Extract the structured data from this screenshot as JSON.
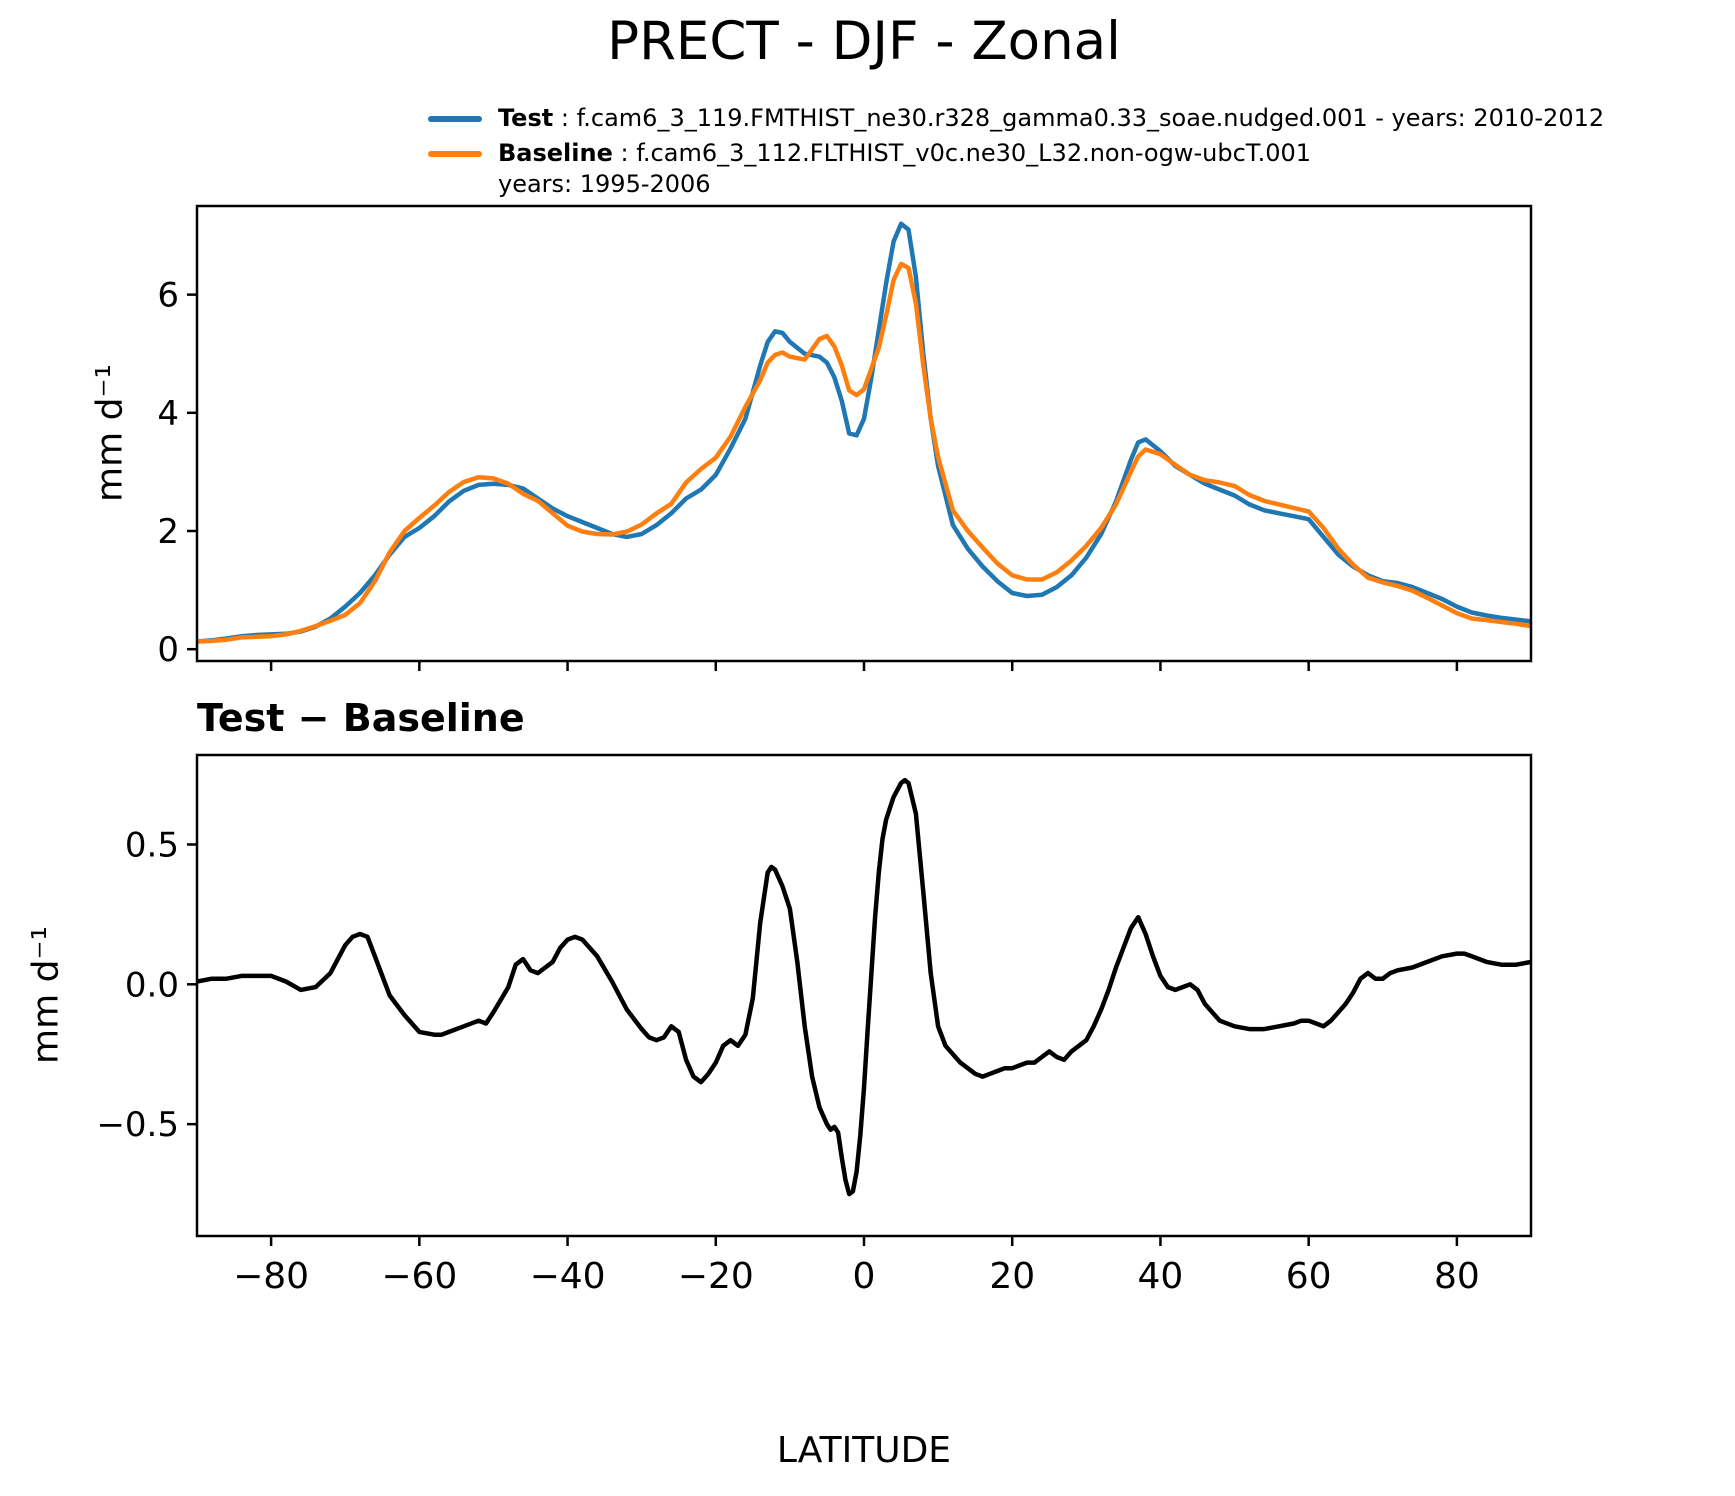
{
  "legend": {
    "items": [
      {
        "label": "Test",
        "text": " : f.cam6_3_119.FMTHIST_ne30.r328_gamma0.33_soae.nudged.001 - years: 2010-2012",
        "color": "#1f77b4"
      },
      {
        "label": "Baseline",
        "text": " : f.cam6_3_112.FLTHIST_v0c.ne30_L32.non-ogw-ubcT.001",
        "text2": "years: 1995-2006",
        "color": "#ff7f0e"
      }
    ]
  },
  "chart_data": [
    {
      "type": "line",
      "title": "PRECT - DJF - Zonal",
      "xlabel": "",
      "ylabel": "mm d⁻¹",
      "xlim": [
        -90,
        90
      ],
      "ylim": [
        -0.2,
        7.5
      ],
      "xticks": [
        -80,
        -60,
        -40,
        -20,
        0,
        20,
        40,
        60,
        80
      ],
      "yticks": [
        0,
        2,
        4,
        6
      ],
      "ytick_labels": [
        "0",
        "2",
        "4",
        "6"
      ],
      "grid": false,
      "legend_position": "above",
      "x": [
        -90,
        -88,
        -86,
        -84,
        -82,
        -80,
        -78,
        -76,
        -74,
        -72,
        -70,
        -68,
        -66,
        -64,
        -62,
        -60,
        -58,
        -56,
        -54,
        -52,
        -50,
        -48,
        -46,
        -44,
        -42,
        -40,
        -38,
        -36,
        -34,
        -32,
        -30,
        -28,
        -26,
        -24,
        -22,
        -20,
        -18,
        -16,
        -14,
        -13,
        -12,
        -11,
        -10,
        -8,
        -6,
        -5,
        -4,
        -3,
        -2,
        -1,
        0,
        1,
        2,
        3,
        4,
        5,
        6,
        7,
        8,
        9,
        10,
        12,
        14,
        16,
        18,
        20,
        22,
        24,
        26,
        28,
        30,
        32,
        34,
        36,
        37,
        38,
        40,
        42,
        44,
        46,
        48,
        50,
        52,
        54,
        56,
        58,
        60,
        62,
        64,
        66,
        68,
        70,
        72,
        74,
        76,
        78,
        80,
        82,
        84,
        86,
        88,
        90
      ],
      "series": [
        {
          "name": "Test",
          "color": "#1f77b4",
          "values": [
            0.13,
            0.15,
            0.18,
            0.22,
            0.24,
            0.25,
            0.26,
            0.3,
            0.38,
            0.52,
            0.72,
            0.95,
            1.25,
            1.6,
            1.9,
            2.05,
            2.25,
            2.5,
            2.68,
            2.78,
            2.8,
            2.78,
            2.72,
            2.55,
            2.38,
            2.25,
            2.15,
            2.05,
            1.95,
            1.9,
            1.95,
            2.1,
            2.3,
            2.55,
            2.7,
            2.95,
            3.4,
            3.9,
            4.8,
            5.2,
            5.38,
            5.35,
            5.2,
            5.0,
            4.95,
            4.85,
            4.6,
            4.2,
            3.65,
            3.62,
            3.9,
            4.6,
            5.4,
            6.2,
            6.9,
            7.2,
            7.1,
            6.3,
            5.0,
            3.9,
            3.1,
            2.1,
            1.7,
            1.4,
            1.15,
            0.95,
            0.9,
            0.92,
            1.05,
            1.25,
            1.55,
            1.95,
            2.5,
            3.2,
            3.5,
            3.55,
            3.35,
            3.1,
            2.95,
            2.8,
            2.7,
            2.6,
            2.45,
            2.35,
            2.3,
            2.25,
            2.2,
            1.9,
            1.6,
            1.4,
            1.25,
            1.15,
            1.12,
            1.05,
            0.95,
            0.85,
            0.72,
            0.62,
            0.57,
            0.53,
            0.5,
            0.47
          ]
        },
        {
          "name": "Baseline",
          "color": "#ff7f0e",
          "values": [
            0.13,
            0.14,
            0.16,
            0.2,
            0.21,
            0.22,
            0.25,
            0.31,
            0.39,
            0.48,
            0.58,
            0.78,
            1.15,
            1.64,
            2.0,
            2.22,
            2.43,
            2.66,
            2.83,
            2.91,
            2.89,
            2.8,
            2.63,
            2.51,
            2.3,
            2.09,
            1.99,
            1.95,
            1.94,
            1.99,
            2.11,
            2.3,
            2.46,
            2.82,
            3.05,
            3.24,
            3.6,
            4.1,
            4.55,
            4.85,
            4.98,
            5.02,
            4.95,
            4.9,
            5.25,
            5.3,
            5.12,
            4.8,
            4.38,
            4.3,
            4.4,
            4.75,
            5.1,
            5.65,
            6.25,
            6.52,
            6.45,
            5.85,
            4.8,
            3.9,
            3.25,
            2.35,
            2.0,
            1.72,
            1.45,
            1.25,
            1.18,
            1.18,
            1.3,
            1.5,
            1.75,
            2.05,
            2.45,
            3.0,
            3.26,
            3.38,
            3.3,
            3.12,
            2.95,
            2.86,
            2.82,
            2.76,
            2.61,
            2.51,
            2.45,
            2.39,
            2.33,
            2.05,
            1.7,
            1.43,
            1.21,
            1.13,
            1.07,
            0.99,
            0.87,
            0.74,
            0.61,
            0.52,
            0.49,
            0.46,
            0.43,
            0.39
          ]
        }
      ]
    },
    {
      "type": "line",
      "title": "Test − Baseline",
      "xlabel": "LATITUDE",
      "ylabel": "mm d⁻¹",
      "xlim": [
        -90,
        90
      ],
      "ylim": [
        -0.9,
        0.82
      ],
      "xticks": [
        -80,
        -60,
        -40,
        -20,
        0,
        20,
        40,
        60,
        80
      ],
      "xtick_labels": [
        "−80",
        "−60",
        "−40",
        "−20",
        "0",
        "20",
        "40",
        "60",
        "80"
      ],
      "yticks": [
        -0.5,
        0.0,
        0.5
      ],
      "ytick_labels": [
        "−0.5",
        "0.0",
        "0.5"
      ],
      "grid": false,
      "series": [
        {
          "name": "Test minus Baseline",
          "color": "#000000",
          "x": [
            -90,
            -88,
            -86,
            -84,
            -82,
            -80,
            -78,
            -76,
            -74,
            -72,
            -70,
            -69,
            -68,
            -67,
            -66,
            -64,
            -62,
            -60,
            -58,
            -57,
            -56,
            -54,
            -52,
            -51,
            -50,
            -48,
            -47,
            -46,
            -45,
            -44,
            -43,
            -42,
            -41,
            -40,
            -39,
            -38,
            -36,
            -34,
            -32,
            -30,
            -29,
            -28,
            -27,
            -26,
            -25,
            -24,
            -23,
            -22,
            -21,
            -20,
            -19,
            -18,
            -17,
            -16,
            -15,
            -14,
            -13,
            -12.5,
            -12,
            -11,
            -10,
            -9,
            -8,
            -7,
            -6,
            -5,
            -4.5,
            -4,
            -3.5,
            -3,
            -2.5,
            -2,
            -1.5,
            -1,
            -0.5,
            0,
            0.5,
            1,
            1.5,
            2,
            2.5,
            3,
            4,
            5,
            5.5,
            6,
            7,
            8,
            9,
            10,
            11,
            12,
            13,
            14,
            15,
            16,
            17,
            18,
            19,
            20,
            21,
            22,
            23,
            24,
            25,
            26,
            27,
            28,
            29,
            30,
            31,
            32,
            33,
            34,
            35,
            36,
            37,
            38,
            39,
            40,
            41,
            42,
            43,
            44,
            45,
            46,
            47,
            48,
            50,
            52,
            54,
            56,
            58,
            59,
            60,
            61,
            62,
            63,
            64,
            65,
            66,
            67,
            68,
            69,
            70,
            71,
            72,
            74,
            76,
            78,
            80,
            81,
            82,
            84,
            86,
            88,
            90
          ],
          "values": [
            0.01,
            0.02,
            0.02,
            0.03,
            0.03,
            0.03,
            0.01,
            -0.02,
            -0.01,
            0.04,
            0.14,
            0.17,
            0.18,
            0.17,
            0.1,
            -0.04,
            -0.11,
            -0.17,
            -0.18,
            -0.18,
            -0.17,
            -0.15,
            -0.13,
            -0.14,
            -0.1,
            -0.01,
            0.07,
            0.09,
            0.05,
            0.04,
            0.06,
            0.08,
            0.13,
            0.16,
            0.17,
            0.16,
            0.1,
            0.01,
            -0.09,
            -0.16,
            -0.19,
            -0.2,
            -0.19,
            -0.15,
            -0.17,
            -0.27,
            -0.33,
            -0.35,
            -0.32,
            -0.28,
            -0.22,
            -0.2,
            -0.22,
            -0.18,
            -0.05,
            0.22,
            0.4,
            0.42,
            0.41,
            0.35,
            0.27,
            0.08,
            -0.15,
            -0.33,
            -0.44,
            -0.5,
            -0.52,
            -0.51,
            -0.53,
            -0.62,
            -0.7,
            -0.75,
            -0.74,
            -0.67,
            -0.54,
            -0.37,
            -0.16,
            0.04,
            0.24,
            0.4,
            0.52,
            0.59,
            0.67,
            0.72,
            0.73,
            0.72,
            0.61,
            0.33,
            0.04,
            -0.15,
            -0.22,
            -0.25,
            -0.28,
            -0.3,
            -0.32,
            -0.33,
            -0.32,
            -0.31,
            -0.3,
            -0.3,
            -0.29,
            -0.28,
            -0.28,
            -0.26,
            -0.24,
            -0.26,
            -0.27,
            -0.24,
            -0.22,
            -0.2,
            -0.15,
            -0.09,
            -0.02,
            0.06,
            0.13,
            0.2,
            0.24,
            0.18,
            0.1,
            0.03,
            -0.01,
            -0.02,
            -0.01,
            0.0,
            -0.02,
            -0.07,
            -0.1,
            -0.13,
            -0.15,
            -0.16,
            -0.16,
            -0.15,
            -0.14,
            -0.13,
            -0.13,
            -0.14,
            -0.15,
            -0.13,
            -0.1,
            -0.07,
            -0.03,
            0.02,
            0.04,
            0.02,
            0.02,
            0.04,
            0.05,
            0.06,
            0.08,
            0.1,
            0.11,
            0.11,
            0.1,
            0.08,
            0.07,
            0.07,
            0.08
          ]
        }
      ]
    }
  ]
}
